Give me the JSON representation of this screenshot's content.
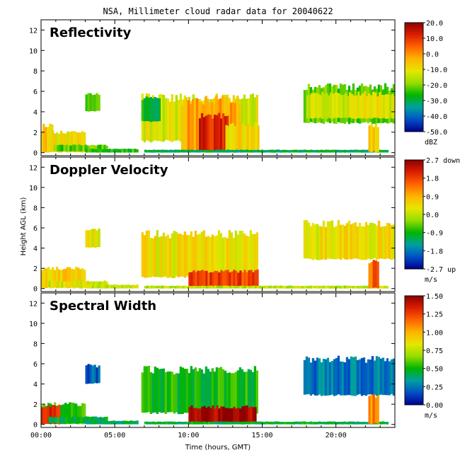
{
  "figure": {
    "title": "NSA, Millimeter cloud radar data for 20040622",
    "xlabel": "Time (hours, GMT)",
    "ylabel": "Height AGL (km)"
  },
  "chart_data": [
    {
      "type": "heatmap",
      "title": "Reflectivity",
      "xlabel": "Time (hours, GMT)",
      "ylabel": "Height AGL (km)",
      "xlim": [
        0,
        24
      ],
      "ylim": [
        -0.3,
        13
      ],
      "x_ticks": [
        0,
        5,
        10,
        15,
        20
      ],
      "x_tick_labels": [
        "00:00",
        "05:00",
        "10:00",
        "15:00",
        "20:00"
      ],
      "y_ticks": [
        0,
        2,
        4,
        6,
        8,
        10,
        12
      ],
      "y_tick_labels": [
        "0",
        "2",
        "4",
        "6",
        "8",
        "10",
        "12"
      ],
      "colorbar": {
        "min": -50,
        "max": 20,
        "unit": "dBZ",
        "tick_labels": [
          "20.0",
          "10.0",
          "0.0",
          "-10.0",
          "-20.0",
          "-30.0",
          "-40.0",
          "-50.0"
        ]
      },
      "colormap": [
        "#00008c",
        "#0050c8",
        "#00a0a0",
        "#00b400",
        "#96dc00",
        "#e6e600",
        "#ffb400",
        "#ff6400",
        "#dc1e00",
        "#8c0000"
      ],
      "regions": [
        {
          "t0": 0.0,
          "t1": 3.0,
          "h0": 0.0,
          "h1": 2.2,
          "value": -10
        },
        {
          "t0": 0.5,
          "t1": 4.5,
          "h0": 0.1,
          "h1": 0.8,
          "value": -22
        },
        {
          "t0": 3.0,
          "t1": 6.5,
          "h0": 0.0,
          "h1": 0.4,
          "value": -25
        },
        {
          "t0": 0.1,
          "t1": 0.8,
          "h0": 0.0,
          "h1": 2.9,
          "value": -5
        },
        {
          "t0": 3.0,
          "t1": 4.0,
          "h0": 4.0,
          "h1": 6.0,
          "value": -25
        },
        {
          "t0": 6.8,
          "t1": 14.7,
          "h0": 1.0,
          "h1": 5.8,
          "value": -12
        },
        {
          "t0": 9.5,
          "t1": 13.5,
          "h0": 0.0,
          "h1": 5.6,
          "value": -2
        },
        {
          "t0": 10.7,
          "t1": 12.7,
          "h0": 0.0,
          "h1": 4.0,
          "value": 12
        },
        {
          "t0": 12.5,
          "t1": 14.7,
          "h0": 0.0,
          "h1": 3.0,
          "value": -8
        },
        {
          "t0": 6.8,
          "t1": 8.0,
          "h0": 3.0,
          "h1": 5.5,
          "value": -28
        },
        {
          "t0": 7.0,
          "t1": 23.5,
          "h0": 0.0,
          "h1": 0.3,
          "value": -30
        },
        {
          "t0": 17.8,
          "t1": 24.0,
          "h0": 2.8,
          "h1": 6.8,
          "value": -22
        },
        {
          "t0": 18.0,
          "t1": 24.0,
          "h0": 3.3,
          "h1": 6.0,
          "value": -12
        },
        {
          "t0": 22.2,
          "t1": 22.8,
          "h0": 0.0,
          "h1": 3.0,
          "value": -8
        }
      ]
    },
    {
      "type": "heatmap",
      "title": "Doppler Velocity",
      "xlabel": "Time (hours, GMT)",
      "ylabel": "Height AGL (km)",
      "xlim": [
        0,
        24
      ],
      "ylim": [
        -0.3,
        13
      ],
      "x_ticks": [
        0,
        5,
        10,
        15,
        20
      ],
      "x_tick_labels": [
        "00:00",
        "05:00",
        "10:00",
        "15:00",
        "20:00"
      ],
      "y_ticks": [
        0,
        2,
        4,
        6,
        8,
        10,
        12
      ],
      "y_tick_labels": [
        "0",
        "2",
        "4",
        "6",
        "8",
        "10",
        "12"
      ],
      "colorbar": {
        "min": -2.7,
        "max": 2.7,
        "unit": "m/s",
        "tick_labels": [
          "2.7 down",
          "1.8",
          "0.9",
          "0.0",
          "-0.9",
          "-1.8",
          "-2.7 up"
        ]
      },
      "colormap": [
        "#00008c",
        "#0050c8",
        "#00a0a0",
        "#00b400",
        "#96dc00",
        "#e6e600",
        "#ffb400",
        "#ff6400",
        "#dc1e00",
        "#8c0000"
      ],
      "regions": [
        {
          "t0": 0.0,
          "t1": 3.0,
          "h0": 0.0,
          "h1": 2.2,
          "value": 0.6
        },
        {
          "t0": 0.5,
          "t1": 4.5,
          "h0": 0.1,
          "h1": 0.8,
          "value": 0.2
        },
        {
          "t0": 3.0,
          "t1": 6.5,
          "h0": 0.0,
          "h1": 0.4,
          "value": 0.1
        },
        {
          "t0": 3.0,
          "t1": 4.0,
          "h0": 4.0,
          "h1": 6.0,
          "value": 0.3
        },
        {
          "t0": 6.8,
          "t1": 14.7,
          "h0": 1.0,
          "h1": 5.8,
          "value": 0.4
        },
        {
          "t0": 10.0,
          "t1": 14.7,
          "h0": 0.0,
          "h1": 1.9,
          "value": 1.8
        },
        {
          "t0": 7.0,
          "t1": 23.5,
          "h0": 0.0,
          "h1": 0.3,
          "value": 0.0
        },
        {
          "t0": 17.8,
          "t1": 24.0,
          "h0": 2.8,
          "h1": 6.8,
          "value": 0.4
        },
        {
          "t0": 22.2,
          "t1": 22.8,
          "h0": 0.0,
          "h1": 3.0,
          "value": 1.5
        }
      ]
    },
    {
      "type": "heatmap",
      "title": "Spectral Width",
      "xlabel": "Time (hours, GMT)",
      "ylabel": "Height AGL (km)",
      "xlim": [
        0,
        24
      ],
      "ylim": [
        -0.3,
        13
      ],
      "x_ticks": [
        0,
        5,
        10,
        15,
        20
      ],
      "x_tick_labels": [
        "00:00",
        "05:00",
        "10:00",
        "15:00",
        "20:00"
      ],
      "y_ticks": [
        0,
        2,
        4,
        6,
        8,
        10,
        12
      ],
      "y_tick_labels": [
        "0",
        "2",
        "4",
        "6",
        "8",
        "10",
        "12"
      ],
      "colorbar": {
        "min": 0.0,
        "max": 1.5,
        "unit": "m/s",
        "tick_labels": [
          "1.50",
          "1.25",
          "1.00",
          "0.75",
          "0.50",
          "0.25",
          "0.00"
        ]
      },
      "colormap": [
        "#00008c",
        "#0050c8",
        "#00a0a0",
        "#00b400",
        "#96dc00",
        "#e6e600",
        "#ffb400",
        "#ff6400",
        "#dc1e00",
        "#8c0000"
      ],
      "regions": [
        {
          "t0": 0.0,
          "t1": 3.0,
          "h0": 0.0,
          "h1": 2.2,
          "value": 0.55
        },
        {
          "t0": 0.0,
          "t1": 1.2,
          "h0": 0.0,
          "h1": 2.0,
          "value": 1.3
        },
        {
          "t0": 0.5,
          "t1": 4.5,
          "h0": 0.1,
          "h1": 0.8,
          "value": 0.45
        },
        {
          "t0": 3.0,
          "t1": 6.5,
          "h0": 0.0,
          "h1": 0.4,
          "value": 0.4
        },
        {
          "t0": 3.0,
          "t1": 4.0,
          "h0": 4.0,
          "h1": 6.0,
          "value": 0.2
        },
        {
          "t0": 6.8,
          "t1": 14.7,
          "h0": 1.0,
          "h1": 5.8,
          "value": 0.5
        },
        {
          "t0": 10.0,
          "t1": 14.5,
          "h0": 0.0,
          "h1": 1.9,
          "value": 1.45
        },
        {
          "t0": 7.0,
          "t1": 23.5,
          "h0": 0.0,
          "h1": 0.3,
          "value": 0.45
        },
        {
          "t0": 17.8,
          "t1": 24.0,
          "h0": 2.8,
          "h1": 6.8,
          "value": 0.25
        },
        {
          "t0": 22.2,
          "t1": 22.8,
          "h0": 0.0,
          "h1": 3.0,
          "value": 1.1
        }
      ]
    }
  ]
}
